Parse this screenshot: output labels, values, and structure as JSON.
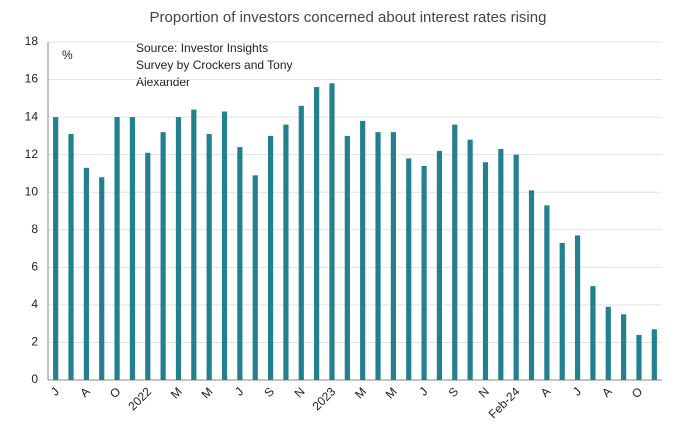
{
  "chart_data": {
    "type": "bar",
    "title": "Proportion of investors concerned about interest rates rising",
    "ylabel": "%",
    "annotation": [
      "Source: Investor Insights",
      "Survey by Crockers and Tony",
      "Alexander"
    ],
    "categories": [
      "J",
      null,
      "A",
      null,
      "O",
      null,
      "2022",
      null,
      "M",
      null,
      "M",
      null,
      "J",
      null,
      "S",
      null,
      "N",
      null,
      "2023",
      null,
      "M",
      null,
      "M",
      null,
      "J",
      null,
      "S",
      null,
      "N",
      null,
      "Feb-24",
      null,
      "A",
      null,
      "J",
      null,
      "A",
      null,
      "O",
      null
    ],
    "values": [
      14.0,
      13.1,
      11.3,
      10.8,
      14.0,
      14.0,
      12.1,
      13.2,
      14.0,
      14.4,
      13.1,
      14.3,
      12.4,
      10.9,
      13.0,
      13.6,
      14.6,
      15.6,
      15.8,
      13.0,
      13.8,
      13.2,
      13.2,
      11.8,
      11.4,
      12.2,
      13.6,
      12.8,
      11.6,
      12.3,
      12.0,
      10.1,
      9.3,
      7.3,
      7.7,
      5.0,
      3.9,
      3.5,
      2.4,
      2.7
    ],
    "color": "#23808f",
    "ylim": [
      0,
      18
    ],
    "yticks": [
      0,
      2,
      4,
      6,
      8,
      10,
      12,
      14,
      16,
      18
    ],
    "grid": true
  }
}
